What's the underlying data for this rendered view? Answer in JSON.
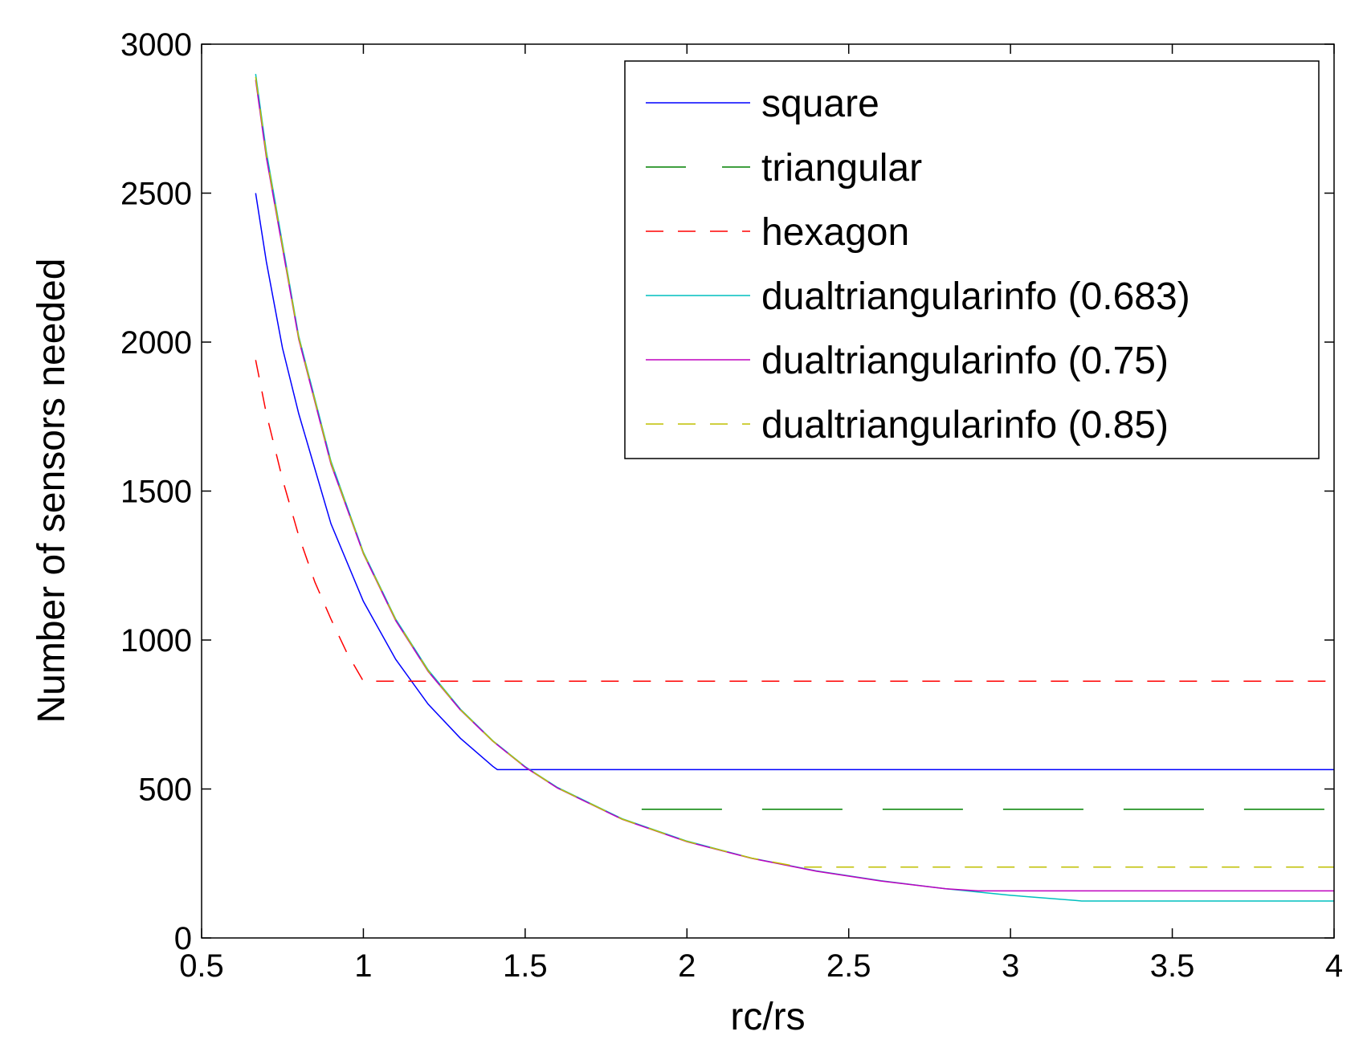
{
  "chart_data": {
    "type": "line",
    "title": "",
    "xlabel": "rc/rs",
    "ylabel": "Number of sensors needed",
    "xlim": [
      0.5,
      4
    ],
    "ylim": [
      0,
      3000
    ],
    "xticks": [
      0.5,
      1,
      1.5,
      2,
      2.5,
      3,
      3.5,
      4
    ],
    "xtick_labels": [
      "0.5",
      "1",
      "1.5",
      "2",
      "2.5",
      "3",
      "3.5",
      "4"
    ],
    "yticks": [
      0,
      500,
      1000,
      1500,
      2000,
      2500,
      3000
    ],
    "ytick_labels": [
      "0",
      "500",
      "1000",
      "1500",
      "2000",
      "2500",
      "3000"
    ],
    "grid": false,
    "legend_position": "top-right",
    "series": [
      {
        "name": "square",
        "color": "#0000ff",
        "dash": "solid",
        "x": [
          0.667,
          0.7,
          0.75,
          0.8,
          0.9,
          1.0,
          1.1,
          1.2,
          1.3,
          1.4,
          1.414,
          1.5,
          2.0,
          2.5,
          3.0,
          3.5,
          4.0
        ],
        "y": [
          2500,
          2270,
          1980,
          1760,
          1390,
          1130,
          935,
          785,
          670,
          576,
          565,
          565,
          565,
          565,
          565,
          565,
          565
        ]
      },
      {
        "name": "triangular",
        "color": "#008000",
        "dash": "long-dash",
        "x": [
          1.86,
          4.0
        ],
        "y": [
          432,
          432
        ]
      },
      {
        "name": "hexagon",
        "color": "#ff0000",
        "dash": "dash",
        "x": [
          0.667,
          0.7,
          0.75,
          0.8,
          0.85,
          0.9,
          0.95,
          1.0,
          1.5,
          2.0,
          2.5,
          3.0,
          3.5,
          4.0
        ],
        "y": [
          1940,
          1760,
          1540,
          1350,
          1195,
          1070,
          955,
          862,
          862,
          862,
          862,
          862,
          862,
          862
        ]
      },
      {
        "name": "dualtriangularinfo (0.683)",
        "color": "#00bfbf",
        "dash": "solid",
        "x": [
          0.667,
          0.7,
          0.8,
          0.9,
          1.0,
          1.1,
          1.2,
          1.3,
          1.4,
          1.5,
          1.6,
          1.8,
          2.0,
          2.2,
          2.4,
          2.6,
          2.8,
          3.0,
          3.2,
          3.22,
          3.5,
          4.0
        ],
        "y": [
          2900,
          2640,
          2020,
          1600,
          1295,
          1070,
          900,
          768,
          662,
          575,
          505,
          400,
          325,
          268,
          225,
          192,
          165,
          143,
          126,
          124,
          124,
          124
        ]
      },
      {
        "name": "dualtriangularinfo (0.75)",
        "color": "#bf00bf",
        "dash": "solid",
        "x": [
          0.667,
          0.7,
          0.8,
          0.9,
          1.0,
          1.1,
          1.2,
          1.3,
          1.4,
          1.5,
          1.6,
          1.8,
          2.0,
          2.2,
          2.4,
          2.6,
          2.8,
          2.9,
          3.0,
          3.5,
          4.0
        ],
        "y": [
          2880,
          2620,
          2010,
          1590,
          1290,
          1065,
          895,
          765,
          660,
          573,
          503,
          398,
          323,
          267,
          224,
          191,
          165,
          158,
          158,
          158,
          158
        ]
      },
      {
        "name": "dualtriangularinfo (0.85)",
        "color": "#bfbf00",
        "dash": "dash",
        "x": [
          0.667,
          0.7,
          0.8,
          0.9,
          1.0,
          1.1,
          1.2,
          1.3,
          1.4,
          1.5,
          1.6,
          1.8,
          2.0,
          2.2,
          2.35,
          2.5,
          3.0,
          3.5,
          4.0
        ],
        "y": [
          2890,
          2630,
          2015,
          1595,
          1292,
          1068,
          897,
          766,
          661,
          574,
          504,
          399,
          324,
          268,
          238,
          238,
          238,
          238,
          238
        ]
      }
    ]
  }
}
